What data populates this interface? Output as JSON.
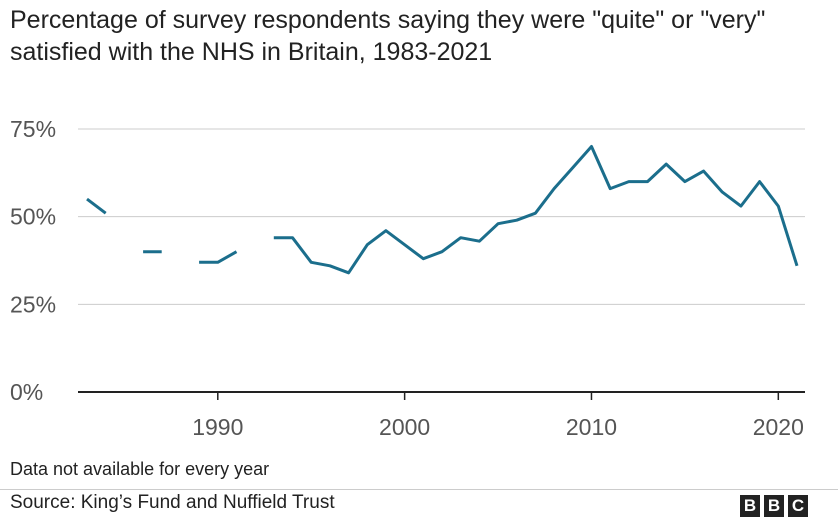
{
  "title": "Percentage of survey respondents saying they were \"quite\" or \"very\" satisfied with the NHS in Britain, 1983-2021",
  "note": "Data not available for every year",
  "source": "Source: King’s Fund and Nuffield Trust",
  "logo": {
    "letters": [
      "B",
      "B",
      "C"
    ]
  },
  "colors": {
    "line": "#1b6e8c",
    "grid": "#cccccc",
    "axis": "#222222",
    "tick_text": "#555555"
  },
  "chart_data": {
    "type": "line",
    "title": "Percentage of survey respondents saying they were \"quite\" or \"very\" satisfied with the NHS in Britain, 1983-2021",
    "xlabel": "",
    "ylabel": "",
    "xlim": [
      1983,
      2021
    ],
    "ylim": [
      0,
      75
    ],
    "y_ticks": [
      0,
      25,
      50,
      75
    ],
    "y_tick_labels": [
      "0%",
      "25%",
      "50%",
      "75%"
    ],
    "x_ticks": [
      1990,
      2000,
      2010,
      2020
    ],
    "x_tick_labels": [
      "1990",
      "2000",
      "2010",
      "2020"
    ],
    "grid": "horizontal",
    "series": [
      {
        "color": "#1b6e8c",
        "points": [
          [
            1983,
            55
          ],
          [
            1984,
            51
          ],
          [
            1985,
            null
          ],
          [
            1986,
            40
          ],
          [
            1987,
            40
          ],
          [
            1988,
            null
          ],
          [
            1989,
            37
          ],
          [
            1990,
            37
          ],
          [
            1991,
            40
          ],
          [
            1992,
            null
          ],
          [
            1993,
            44
          ],
          [
            1994,
            44
          ],
          [
            1995,
            37
          ],
          [
            1996,
            36
          ],
          [
            1997,
            34
          ],
          [
            1998,
            42
          ],
          [
            1999,
            46
          ],
          [
            2000,
            42
          ],
          [
            2001,
            38
          ],
          [
            2002,
            40
          ],
          [
            2003,
            44
          ],
          [
            2004,
            43
          ],
          [
            2005,
            48
          ],
          [
            2006,
            49
          ],
          [
            2007,
            51
          ],
          [
            2008,
            58
          ],
          [
            2009,
            64
          ],
          [
            2010,
            70
          ],
          [
            2011,
            58
          ],
          [
            2012,
            60
          ],
          [
            2013,
            60
          ],
          [
            2014,
            65
          ],
          [
            2015,
            60
          ],
          [
            2016,
            63
          ],
          [
            2017,
            57
          ],
          [
            2018,
            53
          ],
          [
            2019,
            60
          ],
          [
            2020,
            53
          ],
          [
            2021,
            36
          ]
        ]
      }
    ]
  }
}
